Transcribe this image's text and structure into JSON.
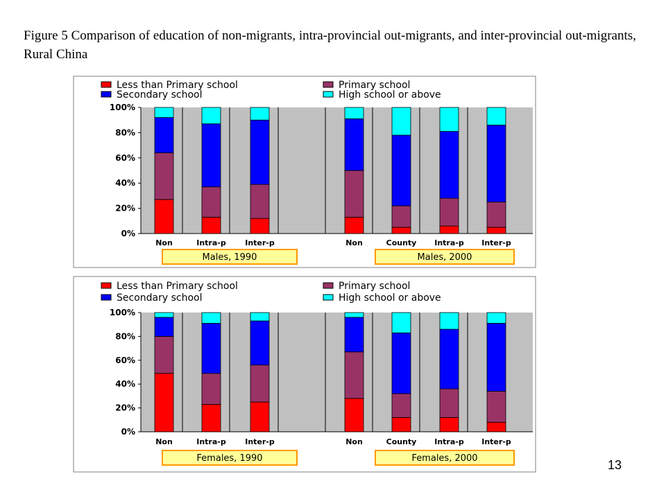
{
  "figure": {
    "caption": "Figure 5  Comparison of education of non-migrants, intra-provincial out-migrants, and inter-provincial out-migrants, Rural China",
    "page_number": "13"
  },
  "colors": {
    "less_than_primary": "#ff0000",
    "primary": "#993366",
    "secondary": "#0000ff",
    "high_school": "#00ffff",
    "plot_background": "#c0c0c0",
    "group_label_fill": "#ffff99",
    "group_label_border": "#ff9900"
  },
  "chart_data": [
    {
      "type": "bar",
      "stacked": "percent",
      "panel": "males",
      "legend": [
        "Less than Primary school",
        "Primary school",
        "Secondary school",
        "High school or above"
      ],
      "yticks": [
        "0%",
        "20%",
        "40%",
        "60%",
        "80%",
        "100%"
      ],
      "ylim": [
        0,
        100
      ],
      "groups": [
        {
          "label": "Males, 1990",
          "categories": [
            "Non",
            "Intra-p",
            "Inter-p"
          ]
        },
        {
          "label": "Males, 2000",
          "categories": [
            "Non",
            "County",
            "Intra-p",
            "Inter-p"
          ]
        }
      ],
      "categories": [
        "Non",
        "Intra-p",
        "Inter-p",
        "Non",
        "County",
        "Intra-p",
        "Inter-p"
      ],
      "series": [
        {
          "name": "Less than Primary school",
          "values": [
            27,
            13,
            12,
            13,
            5,
            6,
            5
          ]
        },
        {
          "name": "Primary school",
          "values": [
            37,
            24,
            27,
            37,
            17,
            22,
            20
          ]
        },
        {
          "name": "Secondary school",
          "values": [
            28,
            50,
            51,
            41,
            56,
            53,
            61
          ]
        },
        {
          "name": "High school or above",
          "values": [
            8,
            13,
            10,
            9,
            22,
            19,
            14
          ]
        }
      ]
    },
    {
      "type": "bar",
      "stacked": "percent",
      "panel": "females",
      "legend": [
        "Less than Primary school",
        "Primary school",
        "Secondary school",
        "High school or above"
      ],
      "yticks": [
        "0%",
        "20%",
        "40%",
        "60%",
        "80%",
        "100%"
      ],
      "ylim": [
        0,
        100
      ],
      "groups": [
        {
          "label": "Females, 1990",
          "categories": [
            "Non",
            "Intra-p",
            "Inter-p"
          ]
        },
        {
          "label": "Females, 2000",
          "categories": [
            "Non",
            "County",
            "Intra-p",
            "Inter-p"
          ]
        }
      ],
      "categories": [
        "Non",
        "Intra-p",
        "Inter-p",
        "Non",
        "County",
        "Intra-p",
        "Inter-p"
      ],
      "series": [
        {
          "name": "Less than Primary school",
          "values": [
            49,
            23,
            25,
            28,
            12,
            12,
            8
          ]
        },
        {
          "name": "Primary school",
          "values": [
            31,
            26,
            31,
            39,
            20,
            24,
            26
          ]
        },
        {
          "name": "Secondary school",
          "values": [
            16,
            42,
            37,
            29,
            51,
            50,
            57
          ]
        },
        {
          "name": "High school or above",
          "values": [
            4,
            9,
            7,
            4,
            17,
            14,
            9
          ]
        }
      ]
    }
  ]
}
